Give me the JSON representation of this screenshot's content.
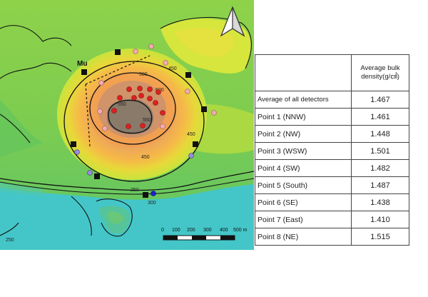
{
  "map": {
    "contour_labels": [
      "500",
      "450",
      "550",
      "600",
      "550",
      "450",
      "450",
      "250",
      "300",
      "250"
    ],
    "mu_label": "Mu",
    "scale_bar": {
      "ticks": [
        "0",
        "100",
        "200",
        "300",
        "400",
        "500 m"
      ]
    },
    "north_arrow_icon": "north-arrow-icon",
    "legend_markers": {
      "detector": "black-square",
      "points": "colored-circles"
    }
  },
  "table": {
    "header": {
      "col1": "",
      "col2": "Average bulk density(g/㎤)"
    },
    "rows": [
      {
        "label": "Average of all detectors",
        "value": "1.467"
      },
      {
        "label": "Point 1 (NNW)",
        "value": "1.461"
      },
      {
        "label": "Point 2 (NW)",
        "value": "1.448"
      },
      {
        "label": "Point 3 (WSW)",
        "value": "1.501"
      },
      {
        "label": "Point 4 (SW)",
        "value": "1.482"
      },
      {
        "label": "Point 5 (South)",
        "value": "1.487"
      },
      {
        "label": "Point 6 (SE)",
        "value": "1.438"
      },
      {
        "label": "Point 7 (East)",
        "value": "1.410"
      },
      {
        "label": "Point 8 (NE)",
        "value": "1.515"
      }
    ]
  },
  "colors": {
    "sea": "#44c8c8",
    "lowland": "#8ed14a",
    "midland": "#d6e83a",
    "highland": "#f0a040",
    "summit": "#9a7a6a",
    "red_point": "#e02020",
    "pink_point": "#f0a0a8",
    "violet_point": "#9a8ae0",
    "blue_point": "#2020d0"
  }
}
